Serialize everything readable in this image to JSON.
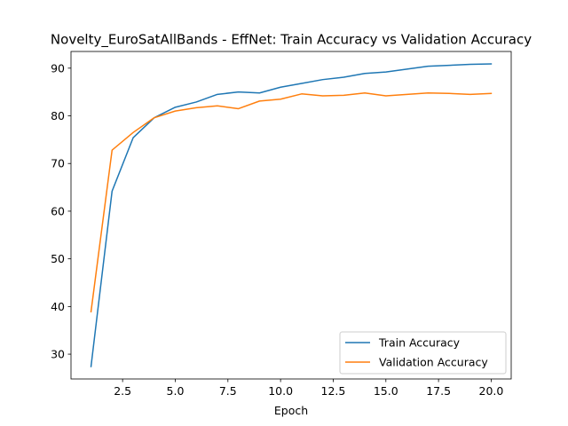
{
  "chart_data": {
    "type": "line",
    "title": "Novelty_EuroSatAllBands - EffNet: Train Accuracy vs Validation Accuracy",
    "xlabel": "Epoch",
    "ylabel": "",
    "xlim": [
      0.05,
      20.95
    ],
    "ylim": [
      24.8,
      93.5
    ],
    "xticks": [
      2.5,
      5.0,
      7.5,
      10.0,
      12.5,
      15.0,
      17.5,
      20.0
    ],
    "xtick_labels": [
      "2.5",
      "5.0",
      "7.5",
      "10.0",
      "12.5",
      "15.0",
      "17.5",
      "20.0"
    ],
    "yticks": [
      30,
      40,
      50,
      60,
      70,
      80,
      90
    ],
    "ytick_labels": [
      "30",
      "40",
      "50",
      "60",
      "70",
      "80",
      "90"
    ],
    "grid": false,
    "legend_position": "lower-right",
    "x": [
      1,
      2,
      3,
      4,
      5,
      6,
      7,
      8,
      9,
      10,
      11,
      12,
      13,
      14,
      15,
      16,
      17,
      18,
      19,
      20
    ],
    "series": [
      {
        "name": "Train Accuracy",
        "color": "#1f77b4",
        "values": [
          27.4,
          64.2,
          75.4,
          79.6,
          81.8,
          82.9,
          84.5,
          85.0,
          84.8,
          86.0,
          86.8,
          87.6,
          88.1,
          88.9,
          89.2,
          89.8,
          90.4,
          90.6,
          90.8,
          90.9
        ]
      },
      {
        "name": "Validation Accuracy",
        "color": "#ff7f0e",
        "values": [
          38.9,
          72.8,
          76.5,
          79.6,
          81.0,
          81.7,
          82.1,
          81.5,
          83.1,
          83.5,
          84.6,
          84.2,
          84.3,
          84.8,
          84.2,
          84.5,
          84.8,
          84.7,
          84.5,
          84.7
        ]
      }
    ]
  }
}
